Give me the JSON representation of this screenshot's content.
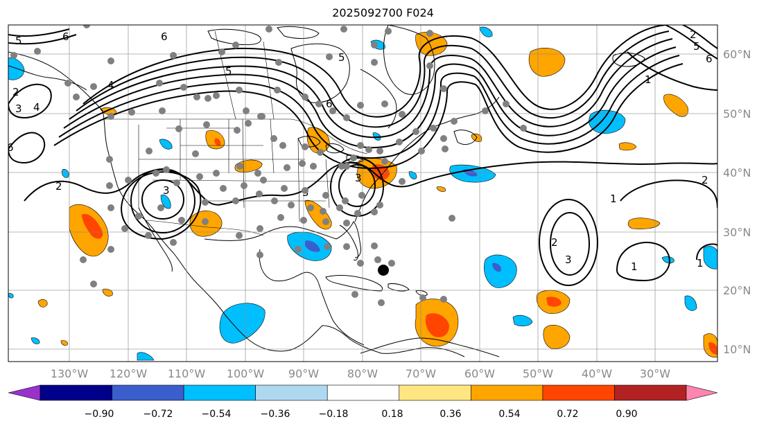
{
  "title": "2025092700 F024",
  "lon_labels": [
    "130°W",
    "120°W",
    "110°W",
    "100°W",
    "90°W",
    "80°W",
    "70°W",
    "60°W",
    "50°W",
    "40°W",
    "30°W"
  ],
  "lat_labels": [
    "60°N",
    "50°N",
    "40°N",
    "30°N",
    "20°N",
    "10°N"
  ],
  "colorbar": {
    "ticks": [
      "−0.90",
      "−0.72",
      "−0.54",
      "−0.36",
      "−0.18",
      "0.18",
      "0.36",
      "0.54",
      "0.72",
      "0.90"
    ],
    "colors": [
      "#9932cc",
      "#00008b",
      "#3a5fcd",
      "#00bfff",
      "#add8f0",
      "#ffffff",
      "#ffe680",
      "#ffa500",
      "#ff4500",
      "#b22222",
      "#ff85b0"
    ]
  },
  "contour_labels": [
    "5",
    "6",
    "6",
    "5",
    "2",
    "3",
    "4",
    "6",
    "3",
    "2",
    "3",
    "4",
    "5",
    "6",
    "3",
    "1",
    "1",
    "2",
    "3",
    "1",
    "1",
    "2",
    "2",
    "5",
    "6"
  ],
  "colors": {
    "orange": "#ffa500",
    "red": "#ff4500",
    "lightblue": "#00bfff",
    "blue": "#3a5fcd",
    "station": "#808080"
  }
}
